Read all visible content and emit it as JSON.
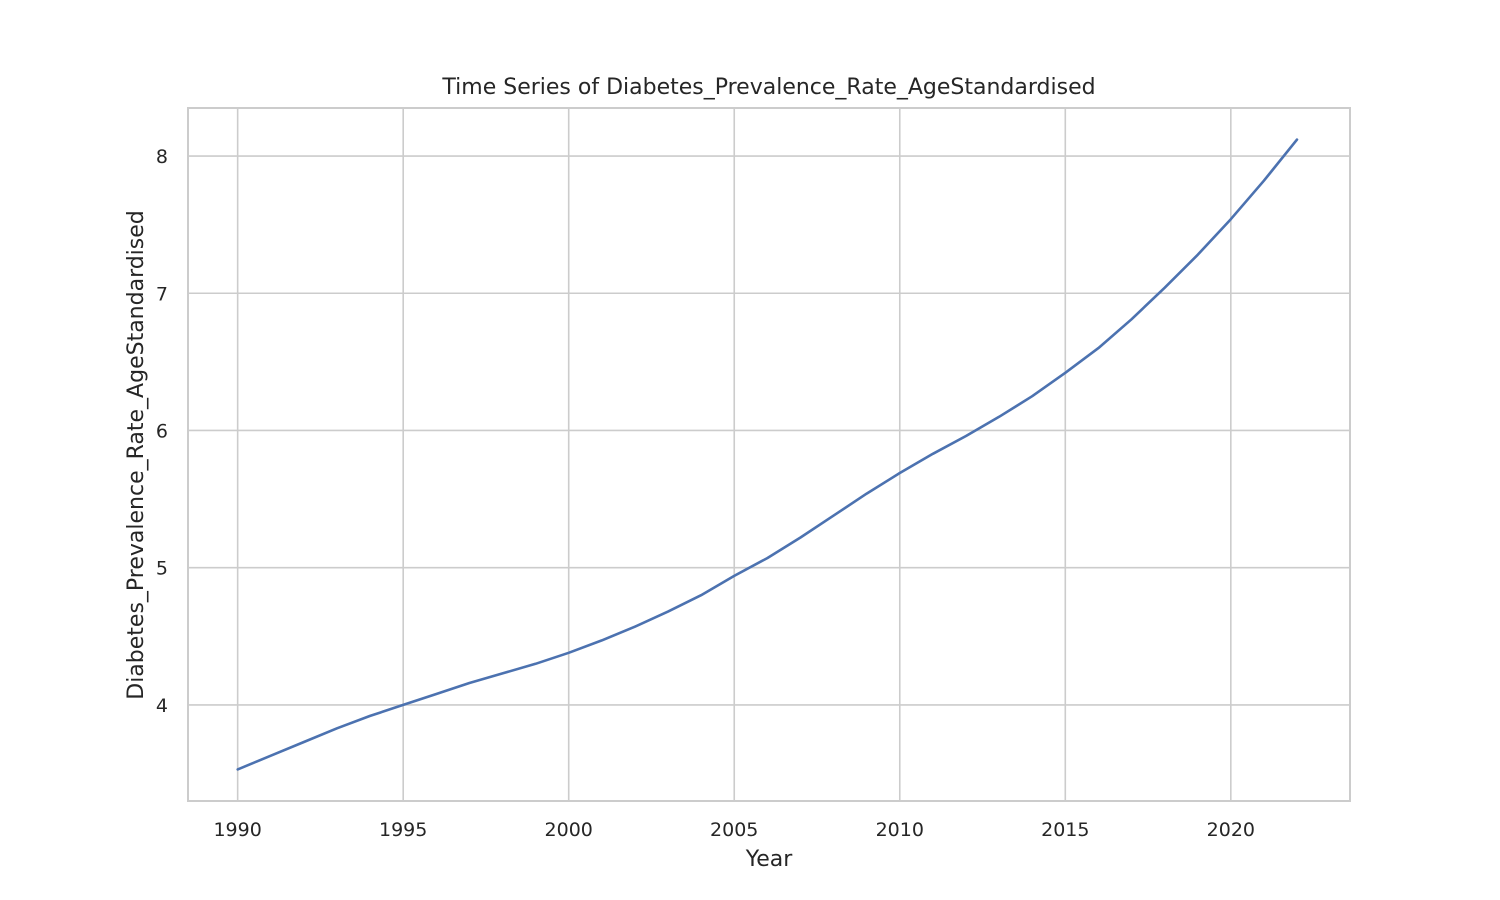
{
  "chart_data": {
    "type": "line",
    "title": "Time Series of Diabetes_Prevalence_Rate_AgeStandardised",
    "xlabel": "Year",
    "ylabel": "Diabetes_Prevalence_Rate_AgeStandardised",
    "xlim": [
      1988.5,
      2023.6
    ],
    "ylim": [
      3.3,
      8.35
    ],
    "xticks": [
      1990,
      1995,
      2000,
      2005,
      2010,
      2015,
      2020
    ],
    "yticks": [
      4,
      5,
      6,
      7,
      8
    ],
    "grid": true,
    "legend": "none",
    "line_color": "#4c72b0",
    "series": [
      {
        "x": [
          1990,
          1991,
          1992,
          1993,
          1994,
          1995,
          1996,
          1997,
          1998,
          1999,
          2000,
          2001,
          2002,
          2003,
          2004,
          2005,
          2006,
          2007,
          2008,
          2009,
          2010,
          2011,
          2012,
          2013,
          2014,
          2015,
          2016,
          2017,
          2018,
          2019,
          2020,
          2021,
          2022
        ],
        "values": [
          3.53,
          3.63,
          3.73,
          3.83,
          3.92,
          4.0,
          4.08,
          4.16,
          4.23,
          4.3,
          4.38,
          4.47,
          4.57,
          4.68,
          4.8,
          4.94,
          5.07,
          5.22,
          5.38,
          5.54,
          5.69,
          5.83,
          5.96,
          6.1,
          6.25,
          6.42,
          6.6,
          6.81,
          7.04,
          7.28,
          7.54,
          7.82,
          8.12
        ]
      }
    ]
  }
}
